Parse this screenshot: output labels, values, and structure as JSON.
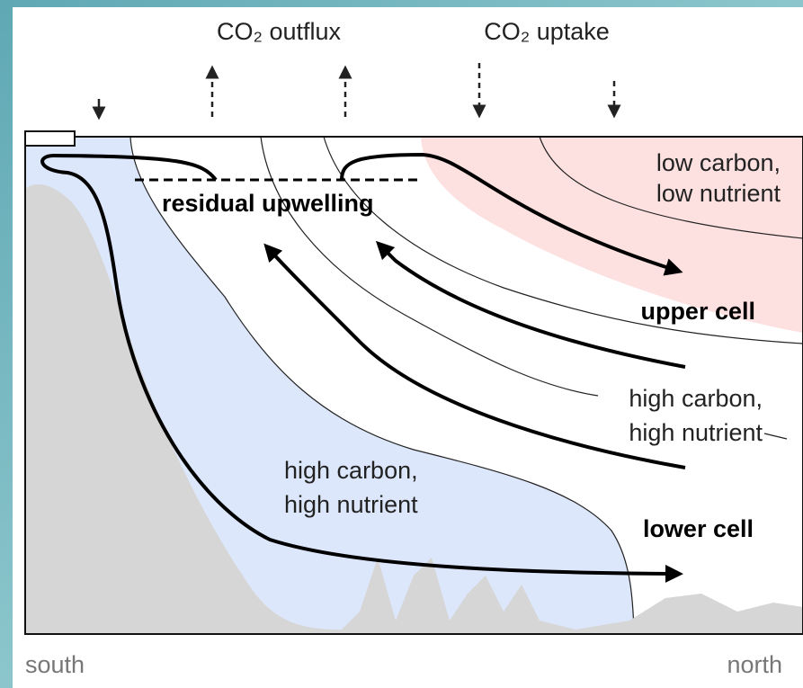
{
  "labels": {
    "co2_outflux": "CO₂ outflux",
    "co2_uptake": "CO₂ uptake",
    "low_region": [
      "low carbon,",
      "low nutrient"
    ],
    "residual": "residual upwelling",
    "upper_cell": "upper cell",
    "mid_region": [
      "high carbon,",
      "high nutrient"
    ],
    "deep_region": [
      "high carbon,",
      "high nutrient"
    ],
    "lower_cell": "lower cell",
    "south": "south",
    "north": "north"
  }
}
